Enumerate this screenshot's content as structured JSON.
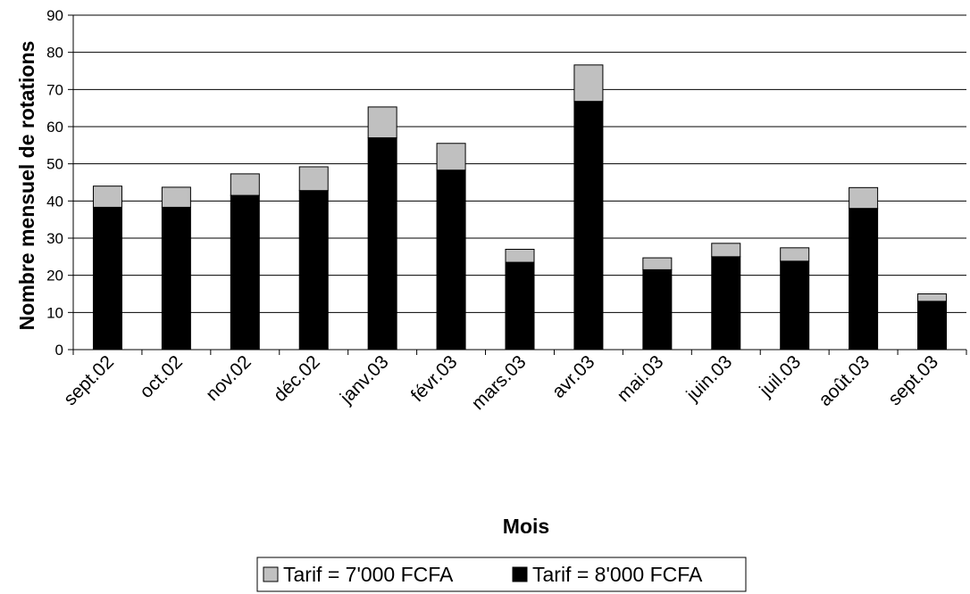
{
  "chart_data": {
    "type": "bar",
    "stacked": true,
    "categories": [
      "sept.02",
      "oct.02",
      "nov.02",
      "déc.02",
      "janv.03",
      "févr.03",
      "mars.03",
      "avr.03",
      "mai.03",
      "juin.03",
      "juil.03",
      "août.03",
      "sept.03"
    ],
    "series": [
      {
        "name": "Tarif = 8'000 FCFA",
        "color": "#000000",
        "values": [
          38.3,
          38.3,
          41.5,
          42.8,
          57.0,
          48.3,
          23.5,
          66.8,
          21.5,
          25.0,
          23.8,
          38.0,
          13.0
        ]
      },
      {
        "name": "Tarif = 7'000 FCFA",
        "color": "#c0c0c0",
        "values": [
          5.7,
          5.4,
          5.8,
          6.4,
          8.3,
          7.2,
          3.5,
          9.8,
          3.2,
          3.6,
          3.6,
          5.6,
          2.0
        ]
      }
    ],
    "xlabel": "Mois",
    "ylabel": "Nombre mensuel de rotations",
    "ylim": [
      0,
      90
    ],
    "yticks": [
      0,
      10,
      20,
      30,
      40,
      50,
      60,
      70,
      80,
      90
    ],
    "grid": true,
    "legend": {
      "placement": "bottom",
      "items": [
        "Tarif = 7'000 FCFA",
        "Tarif = 8'000 FCFA"
      ]
    }
  }
}
